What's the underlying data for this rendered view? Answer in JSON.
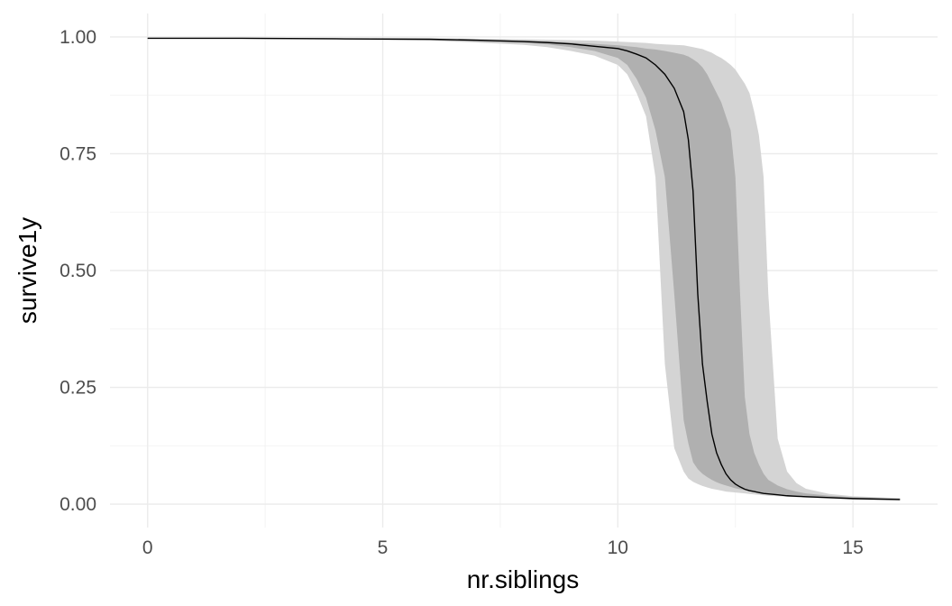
{
  "chart_data": {
    "type": "line",
    "xlabel": "nr.siblings",
    "ylabel": "survive1y",
    "xlim": [
      -0.8,
      16.8
    ],
    "ylim": [
      -0.05,
      1.05
    ],
    "x_ticks": [
      0,
      5,
      10,
      15
    ],
    "x_tick_labels": [
      "0",
      "5",
      "10",
      "15"
    ],
    "y_ticks": [
      0,
      0.25,
      0.5,
      0.75,
      1.0
    ],
    "y_tick_labels": [
      "0.00",
      "0.25",
      "0.50",
      "0.75",
      "1.00"
    ],
    "grid": true,
    "legend": "none",
    "colors": {
      "line": "#000000",
      "outer_band": "#d4d4d4",
      "inner_band": "#b0b0b0",
      "grid": "#ebebeb"
    },
    "x": [
      0,
      2,
      4,
      6,
      7,
      8,
      8.5,
      9,
      9.5,
      10,
      10.2,
      10.4,
      10.6,
      10.8,
      11.0,
      11.2,
      11.4,
      11.5,
      11.6,
      11.7,
      11.8,
      11.9,
      12.0,
      12.1,
      12.2,
      12.3,
      12.4,
      12.5,
      12.6,
      12.7,
      12.8,
      12.9,
      13.0,
      13.1,
      13.2,
      13.4,
      13.6,
      13.8,
      14.0,
      14.5,
      15.0,
      16.0
    ],
    "series": [
      {
        "role": "fit",
        "values": [
          0.997,
          0.997,
          0.996,
          0.995,
          0.993,
          0.99,
          0.988,
          0.985,
          0.98,
          0.975,
          0.97,
          0.963,
          0.955,
          0.94,
          0.92,
          0.89,
          0.84,
          0.78,
          0.67,
          0.45,
          0.3,
          0.22,
          0.15,
          0.11,
          0.085,
          0.065,
          0.052,
          0.043,
          0.037,
          0.032,
          0.029,
          0.027,
          0.025,
          0.023,
          0.022,
          0.02,
          0.018,
          0.017,
          0.016,
          0.014,
          0.012,
          0.01
        ]
      },
      {
        "role": "inner_band",
        "lower": [
          0.997,
          0.996,
          0.995,
          0.993,
          0.99,
          0.987,
          0.984,
          0.978,
          0.97,
          0.955,
          0.94,
          0.91,
          0.87,
          0.8,
          0.7,
          0.45,
          0.18,
          0.13,
          0.09,
          0.075,
          0.065,
          0.058,
          0.052,
          0.047,
          0.043,
          0.04,
          0.037,
          0.034,
          0.032,
          0.03,
          0.028,
          0.026,
          0.025,
          0.023,
          0.022,
          0.02,
          0.018,
          0.017,
          0.016,
          0.014,
          0.012,
          0.01
        ],
        "upper": [
          0.998,
          0.997,
          0.996,
          0.995,
          0.994,
          0.992,
          0.99,
          0.988,
          0.985,
          0.982,
          0.98,
          0.978,
          0.975,
          0.973,
          0.97,
          0.966,
          0.962,
          0.958,
          0.952,
          0.945,
          0.935,
          0.92,
          0.9,
          0.88,
          0.86,
          0.83,
          0.8,
          0.7,
          0.45,
          0.23,
          0.15,
          0.11,
          0.085,
          0.065,
          0.052,
          0.04,
          0.032,
          0.027,
          0.023,
          0.018,
          0.015,
          0.012
        ]
      },
      {
        "role": "outer_band",
        "lower": [
          0.997,
          0.996,
          0.994,
          0.992,
          0.988,
          0.983,
          0.978,
          0.97,
          0.96,
          0.94,
          0.92,
          0.88,
          0.83,
          0.7,
          0.3,
          0.12,
          0.07,
          0.055,
          0.048,
          0.043,
          0.039,
          0.036,
          0.033,
          0.031,
          0.029,
          0.027,
          0.026,
          0.025,
          0.024,
          0.023,
          0.022,
          0.021,
          0.02,
          0.019,
          0.018,
          0.017,
          0.016,
          0.015,
          0.014,
          0.012,
          0.01,
          0.008
        ],
        "upper": [
          0.998,
          0.998,
          0.997,
          0.997,
          0.996,
          0.995,
          0.994,
          0.993,
          0.992,
          0.99,
          0.989,
          0.988,
          0.987,
          0.985,
          0.984,
          0.983,
          0.982,
          0.98,
          0.978,
          0.976,
          0.974,
          0.97,
          0.966,
          0.96,
          0.955,
          0.948,
          0.94,
          0.93,
          0.915,
          0.9,
          0.88,
          0.84,
          0.79,
          0.7,
          0.45,
          0.14,
          0.07,
          0.045,
          0.033,
          0.022,
          0.017,
          0.013
        ]
      }
    ]
  }
}
